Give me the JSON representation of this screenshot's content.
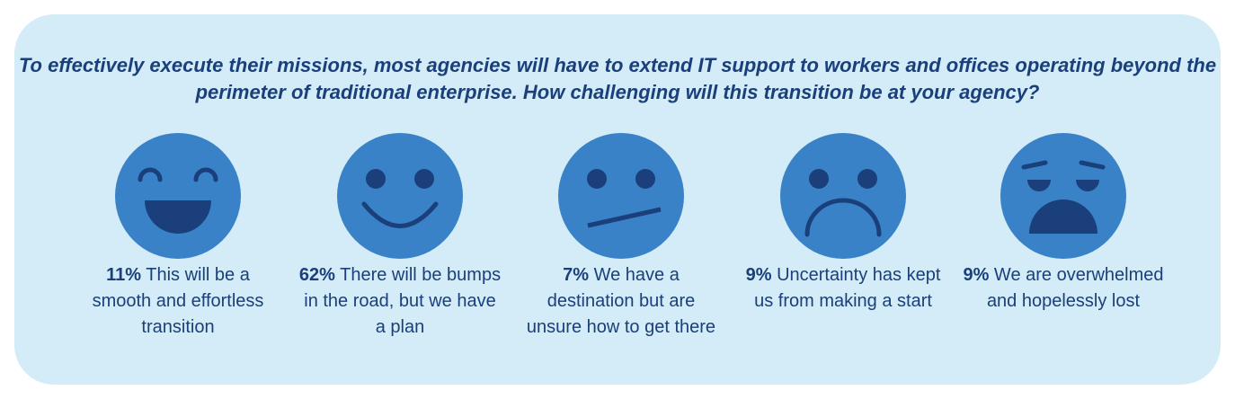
{
  "question": "To effectively execute their missions, most agencies will have to extend IT support to workers and offices operating beyond the perimeter of traditional enterprise. How challenging will this transition be at your agency?",
  "colors": {
    "background": "#d3ecf7",
    "face": "#3a82c7",
    "feature": "#1a3f7a",
    "text": "#1a3f7a"
  },
  "options": [
    {
      "icon": "laughing-face-icon",
      "percent": "11%",
      "text": "This will be a smooth and effortless transition",
      "value": 11
    },
    {
      "icon": "smiling-face-icon",
      "percent": "62%",
      "text": "There will be bumps in the road, but we have a plan",
      "value": 62
    },
    {
      "icon": "skeptical-face-icon",
      "percent": "7%",
      "text": "We have a destination but are unsure how to get there",
      "value": 7
    },
    {
      "icon": "frowning-face-icon",
      "percent": "9%",
      "text": "Uncertainty has kept us from making a start",
      "value": 9
    },
    {
      "icon": "distressed-face-icon",
      "percent": "9%",
      "text": "We are overwhelmed and hopelessly lost",
      "value": 9
    }
  ]
}
